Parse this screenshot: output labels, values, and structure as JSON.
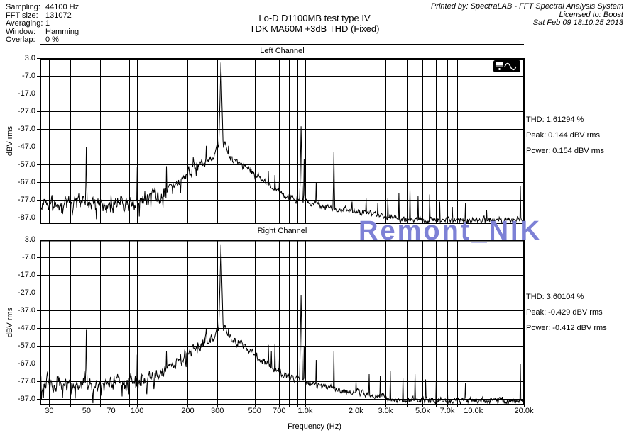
{
  "header": {
    "info_rows": [
      {
        "label": "Sampling:",
        "value": "44100 Hz"
      },
      {
        "label": "FFT size:",
        "value": "131072"
      },
      {
        "label": "Averaging:",
        "value": "1"
      },
      {
        "label": "Window:",
        "value": "Hamming"
      },
      {
        "label": "Overlap:",
        "value": "0 %"
      }
    ],
    "title_line1": "Lo-D D1100MB test type IV",
    "title_line2": "TDK MA60M +3dB THD (Fixed)",
    "printed_line1": "Printed by: SpectraLAB - FFT Spectral Analysis System",
    "printed_line2": "Licensed to: Boost",
    "printed_line3": "Sat Feb 09 18:10:25 2013"
  },
  "watermark": {
    "text": "Remont_NIK",
    "color": "#7d81d6"
  },
  "icons": {
    "plot_corner_icon": "spectralab-plot-icon"
  },
  "chart_data": {
    "type": "line",
    "xscale": "log",
    "xlabel": "Frequency (Hz)",
    "ylabel": "dBV rms",
    "xlim": [
      26.6,
      20000
    ],
    "ylim": [
      -90,
      3
    ],
    "grid": true,
    "main_tone_hz": 315,
    "yticks": [
      3,
      -7,
      -17,
      -27,
      -37,
      -47,
      -57,
      -67,
      -77,
      -87
    ],
    "ytick_labels": [
      "3.0",
      "-7.0",
      "-17.0",
      "-27.0",
      "-37.0",
      "-47.0",
      "-57.0",
      "-67.0",
      "-77.0",
      "-87.0"
    ],
    "x_gridlines": [
      30,
      40,
      50,
      60,
      70,
      80,
      90,
      100,
      200,
      300,
      400,
      500,
      600,
      700,
      800,
      900,
      1000,
      2000,
      3000,
      4000,
      5000,
      6000,
      7000,
      8000,
      9000,
      10000,
      20000
    ],
    "x_ticks": [
      {
        "hz": 30,
        "label": "30"
      },
      {
        "hz": 50,
        "label": "50"
      },
      {
        "hz": 70,
        "label": "70"
      },
      {
        "hz": 100,
        "label": "100"
      },
      {
        "hz": 200,
        "label": "200"
      },
      {
        "hz": 300,
        "label": "300"
      },
      {
        "hz": 500,
        "label": "500"
      },
      {
        "hz": 700,
        "label": "700"
      },
      {
        "hz": 1000,
        "label": "1.0k"
      },
      {
        "hz": 2000,
        "label": "2.0k"
      },
      {
        "hz": 3000,
        "label": "3.0k"
      },
      {
        "hz": 5000,
        "label": "5.0k"
      },
      {
        "hz": 7000,
        "label": "7.0k"
      },
      {
        "hz": 10000,
        "label": "10.0k"
      },
      {
        "hz": 20000,
        "label": "20.0k"
      }
    ],
    "series": [
      {
        "name": "Left Channel",
        "stats": {
          "thd": "THD: 1.61294 %",
          "peak": "Peak: 0.144 dBV rms",
          "power": "Power: 0.154 dBV rms"
        },
        "noise_floor_db": -79,
        "hump": {
          "center_hz": 315,
          "amp_db": 26,
          "sigma_dec": 0.21
        },
        "skirt_peaks": [
          [
            300,
            -45
          ],
          [
            333,
            -44
          ]
        ],
        "peaks": [
          [
            50,
            -47,
            22
          ],
          [
            100,
            -58.5,
            24
          ],
          [
            150,
            -58,
            24
          ],
          [
            215,
            -53,
            22
          ],
          [
            258,
            -46.5,
            20
          ],
          [
            315,
            0.5,
            11
          ],
          [
            350,
            -46.5,
            20
          ],
          [
            385,
            -56,
            22
          ],
          [
            420,
            -57,
            24
          ],
          [
            605,
            -61,
            24
          ],
          [
            660,
            -63,
            24
          ],
          [
            700,
            -65,
            24
          ],
          [
            945,
            -35.5,
            16
          ],
          [
            985,
            -54,
            20
          ],
          [
            1160,
            -67,
            24
          ],
          [
            1480,
            -50,
            20
          ],
          [
            1900,
            -78,
            24
          ],
          [
            2300,
            -76,
            24
          ],
          [
            2700,
            -79,
            24
          ],
          [
            3100,
            -76,
            24
          ],
          [
            3600,
            -73,
            24
          ],
          [
            4200,
            -71,
            22
          ],
          [
            4700,
            -75,
            24
          ],
          [
            5500,
            -74,
            24
          ],
          [
            6300,
            -78,
            24
          ],
          [
            7500,
            -81,
            24
          ],
          [
            9000,
            -79,
            24
          ],
          [
            12000,
            -83,
            24
          ],
          [
            19000,
            -69,
            22
          ]
        ]
      },
      {
        "name": "Right Channel",
        "stats": {
          "thd": "THD: 3.60104 %",
          "peak": "Peak: -0.429 dBV rms",
          "power": "Power: -0.412 dBV rms"
        },
        "noise_floor_db": -78.5,
        "hump": {
          "center_hz": 315,
          "amp_db": 26.5,
          "sigma_dec": 0.21
        },
        "skirt_peaks": [
          [
            300,
            -46
          ],
          [
            333,
            -45
          ]
        ],
        "peaks": [
          [
            50,
            -48,
            22
          ],
          [
            100,
            -62,
            24
          ],
          [
            150,
            -60,
            24
          ],
          [
            215,
            -56,
            22
          ],
          [
            258,
            -47,
            20
          ],
          [
            315,
            -0.1,
            11
          ],
          [
            350,
            -47,
            20
          ],
          [
            385,
            -55,
            22
          ],
          [
            420,
            -57,
            24
          ],
          [
            605,
            -56.5,
            20
          ],
          [
            630,
            -60,
            24
          ],
          [
            660,
            -56,
            20
          ],
          [
            700,
            -63,
            24
          ],
          [
            945,
            -28.5,
            16
          ],
          [
            985,
            -57,
            20
          ],
          [
            1160,
            -65,
            24
          ],
          [
            1480,
            -60,
            22
          ],
          [
            2000,
            -77,
            24
          ],
          [
            2400,
            -73,
            24
          ],
          [
            2800,
            -74,
            24
          ],
          [
            3200,
            -71,
            24
          ],
          [
            3800,
            -75,
            24
          ],
          [
            4500,
            -73,
            24
          ],
          [
            5200,
            -76,
            24
          ],
          [
            6000,
            -77,
            24
          ],
          [
            7000,
            -79,
            24
          ],
          [
            9000,
            -78,
            24
          ],
          [
            19000,
            -67,
            22
          ]
        ]
      }
    ]
  }
}
